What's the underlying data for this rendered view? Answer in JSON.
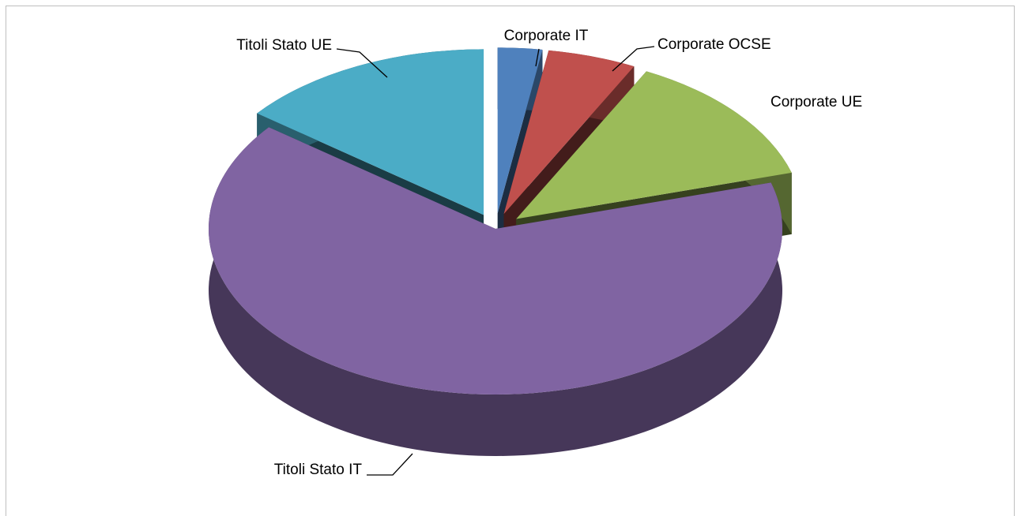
{
  "chart_data": {
    "type": "pie",
    "three_d": true,
    "exploded": true,
    "categories": [
      "Corporate IT",
      "Corporate OCSE",
      "Corporate UE",
      "Titoli Stato IT",
      "Titoli Stato UE"
    ],
    "values": [
      2.5,
      5,
      13,
      65,
      14.5
    ],
    "colors": [
      "#4f81bd",
      "#c0504d",
      "#9bbb59",
      "#8064a2",
      "#4bacc6"
    ]
  }
}
